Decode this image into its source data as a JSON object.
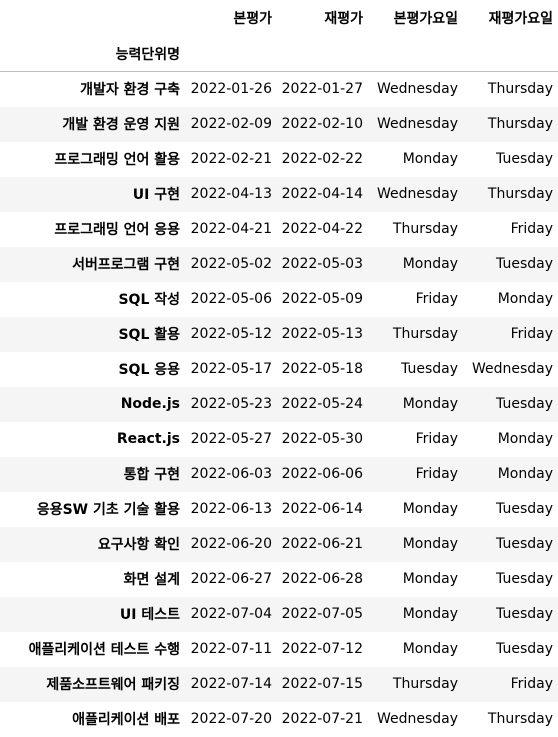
{
  "table": {
    "columns": [
      "본평가",
      "재평가",
      "본평가요일",
      "재평가요일"
    ],
    "index_name": "능력단위명",
    "rows": [
      {
        "name": "개발자 환경 구축",
        "cells": [
          "2022-01-26",
          "2022-01-27",
          "Wednesday",
          "Thursday"
        ]
      },
      {
        "name": "개발 환경 운영 지원",
        "cells": [
          "2022-02-09",
          "2022-02-10",
          "Wednesday",
          "Thursday"
        ]
      },
      {
        "name": "프로그래밍 언어 활용",
        "cells": [
          "2022-02-21",
          "2022-02-22",
          "Monday",
          "Tuesday"
        ]
      },
      {
        "name": "UI 구현",
        "cells": [
          "2022-04-13",
          "2022-04-14",
          "Wednesday",
          "Thursday"
        ]
      },
      {
        "name": "프로그래밍 언어 응용",
        "cells": [
          "2022-04-21",
          "2022-04-22",
          "Thursday",
          "Friday"
        ]
      },
      {
        "name": "서버프로그램 구현",
        "cells": [
          "2022-05-02",
          "2022-05-03",
          "Monday",
          "Tuesday"
        ]
      },
      {
        "name": "SQL 작성",
        "cells": [
          "2022-05-06",
          "2022-05-09",
          "Friday",
          "Monday"
        ]
      },
      {
        "name": "SQL 활용",
        "cells": [
          "2022-05-12",
          "2022-05-13",
          "Thursday",
          "Friday"
        ]
      },
      {
        "name": "SQL 응용",
        "cells": [
          "2022-05-17",
          "2022-05-18",
          "Tuesday",
          "Wednesday"
        ]
      },
      {
        "name": "Node.js",
        "cells": [
          "2022-05-23",
          "2022-05-24",
          "Monday",
          "Tuesday"
        ]
      },
      {
        "name": "React.js",
        "cells": [
          "2022-05-27",
          "2022-05-30",
          "Friday",
          "Monday"
        ]
      },
      {
        "name": "통합 구현",
        "cells": [
          "2022-06-03",
          "2022-06-06",
          "Friday",
          "Monday"
        ]
      },
      {
        "name": "응용SW 기초 기술 활용",
        "cells": [
          "2022-06-13",
          "2022-06-14",
          "Monday",
          "Tuesday"
        ]
      },
      {
        "name": "요구사항 확인",
        "cells": [
          "2022-06-20",
          "2022-06-21",
          "Monday",
          "Tuesday"
        ]
      },
      {
        "name": "화면 설계",
        "cells": [
          "2022-06-27",
          "2022-06-28",
          "Monday",
          "Tuesday"
        ]
      },
      {
        "name": "UI 테스트",
        "cells": [
          "2022-07-04",
          "2022-07-05",
          "Monday",
          "Tuesday"
        ]
      },
      {
        "name": "애플리케이션 테스트 수행",
        "cells": [
          "2022-07-11",
          "2022-07-12",
          "Monday",
          "Tuesday"
        ]
      },
      {
        "name": "제품소프트웨어 패키징",
        "cells": [
          "2022-07-14",
          "2022-07-15",
          "Thursday",
          "Friday"
        ]
      },
      {
        "name": "애플리케이션 배포",
        "cells": [
          "2022-07-20",
          "2022-07-21",
          "Wednesday",
          "Thursday"
        ]
      }
    ]
  },
  "colors": {
    "stripe": "#f5f5f5",
    "background": "#ffffff",
    "header_rule": "#bdbdbd",
    "text": "#000000"
  }
}
